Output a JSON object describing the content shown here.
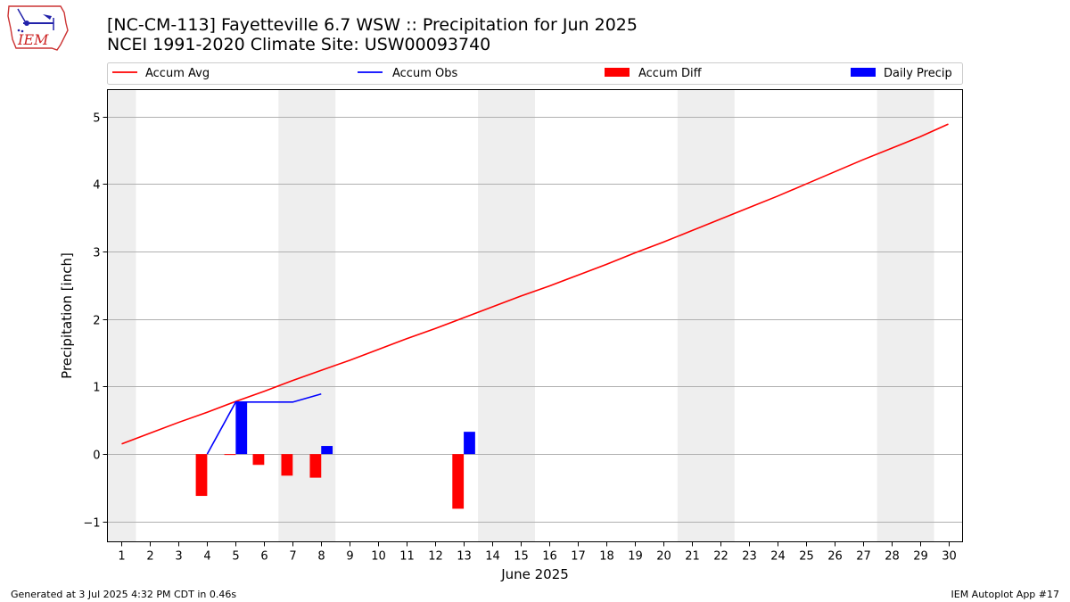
{
  "title": "[NC-CM-113] Fayetteville 6.7 WSW :: Precipitation for Jun 2025",
  "subtitle": "NCEI 1991-2020 Climate Site: USW00093740",
  "logo_text": "IEM",
  "footer_left": "Generated at 3 Jul 2025 4:32 PM CDT in 0.46s",
  "footer_right": "IEM Autoplot App #17",
  "colors": {
    "accum_avg": "#ff0000",
    "accum_obs": "#0000ff",
    "accum_diff": "#ff0000",
    "daily_precip": "#0000ff",
    "weekend_shade": "#eeeeee",
    "grid": "#b0b0b0"
  },
  "chart_data": {
    "type": "line",
    "xlabel": "June 2025",
    "ylabel": "Precipitation [inch]",
    "xlim": [
      0.5,
      30.5
    ],
    "ylim": [
      -1.3,
      5.4
    ],
    "x_ticks": [
      "1",
      "2",
      "3",
      "4",
      "5",
      "6",
      "7",
      "8",
      "9",
      "10",
      "11",
      "12",
      "13",
      "14",
      "15",
      "16",
      "17",
      "18",
      "19",
      "20",
      "21",
      "22",
      "23",
      "24",
      "25",
      "26",
      "27",
      "28",
      "29",
      "30"
    ],
    "y_ticks": [
      "−1",
      "0",
      "1",
      "2",
      "3",
      "4",
      "5"
    ],
    "grid": "y",
    "legend_position": "top",
    "legend": [
      "Accum Avg",
      "Accum Obs",
      "Accum Diff",
      "Daily Precip"
    ],
    "shaded_days": [
      [
        0.5,
        1.5
      ],
      [
        6.5,
        8.5
      ],
      [
        13.5,
        15.5
      ],
      [
        20.5,
        22.5
      ],
      [
        27.5,
        29.5
      ]
    ],
    "accum_avg": [
      0.15,
      0.31,
      0.47,
      0.62,
      0.78,
      0.93,
      1.09,
      1.24,
      1.39,
      1.55,
      1.71,
      1.86,
      2.02,
      2.18,
      2.34,
      2.49,
      2.65,
      2.81,
      2.98,
      3.14,
      3.31,
      3.48,
      3.65,
      3.82,
      4.0,
      4.18,
      4.36,
      4.53,
      4.7,
      4.89
    ],
    "accum_obs": [
      {
        "x": 4,
        "y": 0.0
      },
      {
        "x": 5,
        "y": 0.77
      },
      {
        "x": 6,
        "y": 0.77
      },
      {
        "x": 7,
        "y": 0.77
      },
      {
        "x": 8,
        "y": 0.89
      }
    ],
    "accum_diff": [
      {
        "x": 4,
        "y": -0.62
      },
      {
        "x": 5,
        "y": -0.01
      },
      {
        "x": 6,
        "y": -0.16
      },
      {
        "x": 7,
        "y": -0.32
      },
      {
        "x": 8,
        "y": -0.35
      },
      {
        "x": 13,
        "y": -0.81
      }
    ],
    "daily_precip": [
      {
        "x": 5,
        "y": 0.77
      },
      {
        "x": 8,
        "y": 0.12
      },
      {
        "x": 13,
        "y": 0.33
      }
    ]
  }
}
